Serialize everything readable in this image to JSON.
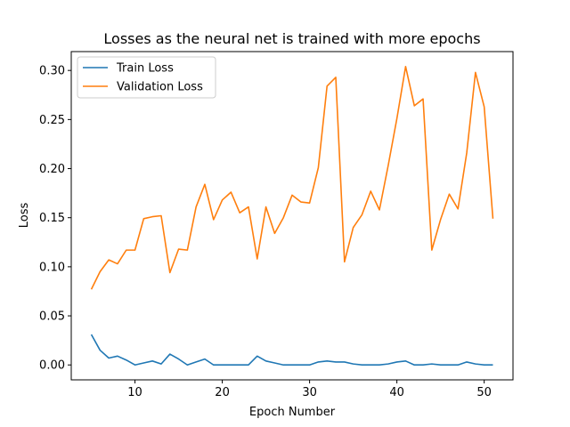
{
  "chart_data": {
    "type": "line",
    "title": "Losses as the neural net is trained with more epochs",
    "xlabel": "Epoch Number",
    "ylabel": "Loss",
    "xlim": [
      2.7,
      53.3
    ],
    "ylim": [
      -0.0152,
      0.3192
    ],
    "xticks": [
      10,
      20,
      30,
      40,
      50
    ],
    "yticks": [
      0.0,
      0.05,
      0.1,
      0.15,
      0.2,
      0.25,
      0.3
    ],
    "grid": false,
    "legend_position": "top-left",
    "x": [
      5,
      6,
      7,
      8,
      9,
      10,
      11,
      12,
      13,
      14,
      15,
      16,
      17,
      18,
      19,
      20,
      21,
      22,
      23,
      24,
      25,
      26,
      27,
      28,
      29,
      30,
      31,
      32,
      33,
      34,
      35,
      36,
      37,
      38,
      39,
      40,
      41,
      42,
      43,
      44,
      45,
      46,
      47,
      48,
      49,
      50,
      51
    ],
    "series": [
      {
        "name": "Train Loss",
        "color": "#1f77b4",
        "values": [
          0.031,
          0.015,
          0.007,
          0.009,
          0.005,
          0.0,
          0.002,
          0.004,
          0.001,
          0.011,
          0.006,
          0.0,
          0.003,
          0.006,
          0.0,
          0.0,
          0.0,
          0.0,
          0.0,
          0.009,
          0.004,
          0.002,
          0.0,
          0.0,
          0.0,
          0.0,
          0.003,
          0.004,
          0.003,
          0.003,
          0.001,
          0.0,
          0.0,
          0.0,
          0.001,
          0.003,
          0.004,
          0.0,
          0.0,
          0.001,
          0.0,
          0.0,
          0.0,
          0.003,
          0.001,
          0.0,
          0.0
        ]
      },
      {
        "name": "Validation Loss",
        "color": "#ff7f0e",
        "values": [
          0.077,
          0.095,
          0.107,
          0.103,
          0.117,
          0.117,
          0.149,
          0.151,
          0.152,
          0.094,
          0.118,
          0.117,
          0.161,
          0.184,
          0.148,
          0.168,
          0.176,
          0.155,
          0.161,
          0.108,
          0.161,
          0.134,
          0.15,
          0.173,
          0.166,
          0.165,
          0.201,
          0.284,
          0.293,
          0.105,
          0.14,
          0.153,
          0.177,
          0.158,
          0.203,
          0.251,
          0.304,
          0.264,
          0.271,
          0.117,
          0.148,
          0.174,
          0.159,
          0.216,
          0.298,
          0.263,
          0.149
        ]
      }
    ]
  }
}
